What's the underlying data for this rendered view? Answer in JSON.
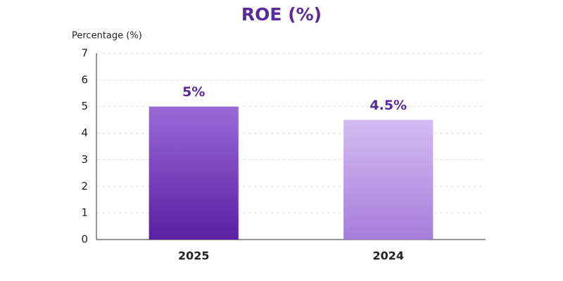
{
  "chart_data": {
    "type": "bar",
    "title": "ROE (%)",
    "y_label": "Percentage (%)",
    "categories": [
      "2025",
      "2024"
    ],
    "values": [
      5,
      4.5
    ],
    "value_labels": [
      "5%",
      "4.5%"
    ],
    "colors": [
      [
        "#9a6ad8",
        "#5b1fa3"
      ],
      [
        "#d5bcf2",
        "#a57ddb"
      ]
    ],
    "ylim": [
      0,
      7
    ],
    "yticks": [
      0,
      1,
      2,
      3,
      4,
      5,
      6,
      7
    ],
    "grid": true
  }
}
